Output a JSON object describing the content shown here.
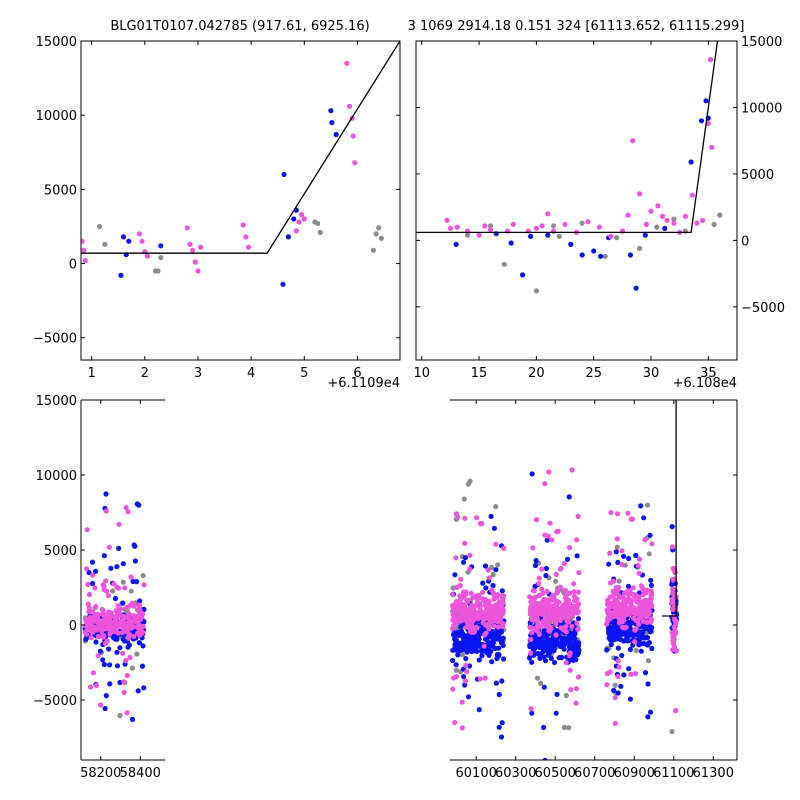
{
  "chart_data": [
    {
      "type": "scatter",
      "title": "BLG01T0107.042785 (917.61, 6925.16)",
      "xlabel": "",
      "ylabel": "",
      "xlim": [
        0.8,
        6.8
      ],
      "ylim": [
        -6500,
        15000
      ],
      "x_offset_label": "+6.1109e4",
      "xticks": [
        1,
        2,
        3,
        4,
        5,
        6
      ],
      "yticks": [
        -5000,
        0,
        5000,
        10000,
        15000
      ],
      "y_axis_side": "left",
      "model_line": {
        "x": [
          0.8,
          4.3,
          6.8
        ],
        "y": [
          700,
          700,
          15000
        ]
      },
      "series": [
        {
          "name": "blue",
          "color": "#0a14f0",
          "x": [
            1.55,
            1.6,
            1.65,
            1.7,
            2.3,
            4.6,
            4.62,
            4.7,
            4.8,
            4.85,
            5.5,
            5.52,
            5.6
          ],
          "y": [
            -800,
            1800,
            600,
            1500,
            1200,
            -1400,
            6000,
            1800,
            3000,
            3600,
            10300,
            9500,
            8700
          ]
        },
        {
          "name": "magenta",
          "color": "#ee55dd",
          "x": [
            0.82,
            0.85,
            0.88,
            1.9,
            1.95,
            2.0,
            2.05,
            2.8,
            2.85,
            2.9,
            2.95,
            3.0,
            3.05,
            3.85,
            3.9,
            3.95,
            4.85,
            4.9,
            4.95,
            5.0,
            5.8,
            5.85,
            5.9,
            5.92,
            5.95
          ],
          "y": [
            1500,
            900,
            200,
            2000,
            1500,
            800,
            500,
            2400,
            1300,
            900,
            100,
            -500,
            1100,
            2600,
            1800,
            1100,
            2200,
            2800,
            3300,
            3000,
            13500,
            10600,
            9800,
            8600,
            6800
          ]
        },
        {
          "name": "gray",
          "color": "#8c8c8c",
          "x": [
            1.15,
            1.25,
            2.2,
            2.25,
            2.3,
            5.2,
            5.25,
            5.3,
            6.3,
            6.35,
            6.4,
            6.45
          ],
          "y": [
            2500,
            1300,
            -500,
            -500,
            400,
            2800,
            2700,
            2100,
            900,
            2000,
            2400,
            1700
          ]
        }
      ]
    },
    {
      "type": "scatter",
      "title": "3 1069 2914.18 0.151 324 [61113.652, 61115.299]",
      "xlabel": "",
      "ylabel": "",
      "xlim": [
        9.5,
        37.5
      ],
      "ylim": [
        -9000,
        15000
      ],
      "x_offset_label": "+6.108e4",
      "xticks": [
        10,
        15,
        20,
        25,
        30,
        35
      ],
      "yticks": [
        -5000,
        0,
        5000,
        10000,
        15000
      ],
      "y_axis_side": "right",
      "model_line": {
        "x": [
          9.5,
          33.5,
          35.8
        ],
        "y": [
          600,
          600,
          15000
        ]
      },
      "series": [
        {
          "name": "blue",
          "color": "#0a14f0",
          "x": [
            13.0,
            16.5,
            17.8,
            18.8,
            19.5,
            21.0,
            23.0,
            24.0,
            25.0,
            25.6,
            26.3,
            28.2,
            28.7,
            29.5,
            31.2,
            33.5,
            34.4,
            34.8,
            35.0
          ],
          "y": [
            -300,
            500,
            -200,
            -2600,
            300,
            400,
            -300,
            -1100,
            -800,
            -1200,
            200,
            -1100,
            -3600,
            400,
            900,
            5900,
            9000,
            10500,
            9200
          ]
        },
        {
          "name": "magenta",
          "color": "#ee55dd",
          "x": [
            12.2,
            12.5,
            13.1,
            14.0,
            15.0,
            15.5,
            16.0,
            17.5,
            18.0,
            19.3,
            20.0,
            20.5,
            21.0,
            21.5,
            22.5,
            23.5,
            24.5,
            25.5,
            26.5,
            27.5,
            28.0,
            28.4,
            29.0,
            29.6,
            30.0,
            30.6,
            31.0,
            31.4,
            32.0,
            32.5,
            33.0,
            33.6,
            34.0,
            34.5,
            35.0,
            35.2,
            35.3
          ],
          "y": [
            1500,
            900,
            1000,
            700,
            400,
            1100,
            800,
            700,
            1200,
            700,
            900,
            1100,
            2000,
            700,
            1200,
            600,
            1400,
            1000,
            300,
            700,
            1900,
            7500,
            3500,
            1200,
            2200,
            2600,
            1800,
            1500,
            1300,
            600,
            1800,
            3400,
            1300,
            1500,
            8800,
            13600,
            7000
          ]
        },
        {
          "name": "gray",
          "color": "#8c8c8c",
          "x": [
            14.0,
            16.0,
            17.2,
            20.0,
            21.5,
            22.0,
            24.0,
            26.0,
            27.0,
            29.0,
            30.5,
            32.0,
            33.0,
            35.5,
            36.0
          ],
          "y": [
            400,
            1100,
            -1800,
            -3800,
            1100,
            300,
            1300,
            -1200,
            200,
            -600,
            1000,
            1600,
            700,
            1200,
            1900
          ]
        }
      ]
    },
    {
      "type": "scatter",
      "title": "",
      "xlabel": "",
      "ylabel": "",
      "xlim": [
        58100,
        61420
      ],
      "ylim": [
        -9000,
        15000
      ],
      "xticks": [
        58200,
        58400,
        60100,
        60300,
        60500,
        60700,
        60900,
        61100,
        61300
      ],
      "yticks": [
        -5000,
        0,
        5000,
        10000,
        15000
      ],
      "broken_axis": [
        58400,
        59950
      ],
      "y_axis_side": "left",
      "model_line": {
        "x": [
          61040,
          61110,
          61110,
          61112,
          61112
        ],
        "y": [
          600,
          600,
          600,
          600,
          15000
        ]
      },
      "seasons": [
        {
          "start": 58120,
          "end": 58420,
          "center_y": 0,
          "spread": 700,
          "magenta_offset": 200,
          "blue_offset": -300,
          "points": 220
        },
        {
          "start": 59980,
          "end": 60240,
          "center_y": 200,
          "spread": 900,
          "magenta_offset": 700,
          "blue_offset": -1200,
          "points": 240
        },
        {
          "start": 60370,
          "end": 60620,
          "center_y": 100,
          "spread": 900,
          "magenta_offset": 900,
          "blue_offset": -1200,
          "points": 240
        },
        {
          "start": 60760,
          "end": 60990,
          "center_y": 300,
          "spread": 900,
          "magenta_offset": 900,
          "blue_offset": -600,
          "points": 220
        },
        {
          "start": 61090,
          "end": 61115,
          "center_y": 800,
          "spread": 1500,
          "magenta_offset": 300,
          "blue_offset": 0,
          "points": 40
        }
      ],
      "series": [
        {
          "name": "blue",
          "color": "#0a14f0"
        },
        {
          "name": "magenta",
          "color": "#ee55dd"
        },
        {
          "name": "gray",
          "color": "#8c8c8c"
        }
      ]
    }
  ]
}
